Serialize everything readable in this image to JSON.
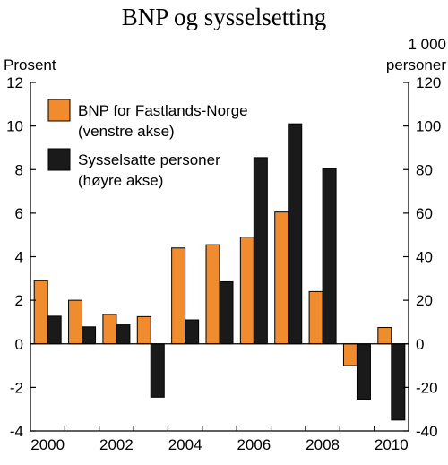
{
  "chart_data": {
    "type": "bar",
    "title": "BNP og sysselsetting",
    "left_unit": "Prosent",
    "right_unit": [
      "1 000",
      "personer"
    ],
    "categories": [
      "2000",
      "2001",
      "2002",
      "2003",
      "2004",
      "2005",
      "2006",
      "2007",
      "2008",
      "2009",
      "2010"
    ],
    "x_tick_labels": [
      "2000",
      "2002",
      "2004",
      "2006",
      "2008",
      "2010"
    ],
    "left_axis": {
      "ylim": [
        -4,
        12
      ],
      "ticks": [
        "-4",
        "-2",
        "0",
        "2",
        "4",
        "6",
        "8",
        "10",
        "12"
      ]
    },
    "right_axis": {
      "ylim": [
        -40,
        120
      ],
      "ticks": [
        "-40",
        "-20",
        "0",
        "20",
        "40",
        "60",
        "80",
        "100",
        "120"
      ]
    },
    "grid": false,
    "legend_position": "top-left",
    "series": [
      {
        "name": "BNP for Fastlands-Norge",
        "legend_lines": [
          "BNP for Fastlands-Norge",
          "(venstre akse)"
        ],
        "axis": "left",
        "color": "#F08B2E",
        "values": [
          2.9,
          2.0,
          1.35,
          1.25,
          4.4,
          4.55,
          4.9,
          6.05,
          2.4,
          -1.0,
          0.75
        ]
      },
      {
        "name": "Sysselsatte personer",
        "legend_lines": [
          "Sysselsatte personer",
          "(høyre akse)"
        ],
        "axis": "right",
        "color": "#1A1A1A",
        "values": [
          12.7,
          7.8,
          8.7,
          -24.5,
          11.0,
          28.5,
          85.5,
          101.0,
          80.5,
          -25.5,
          -35.0
        ]
      }
    ]
  }
}
